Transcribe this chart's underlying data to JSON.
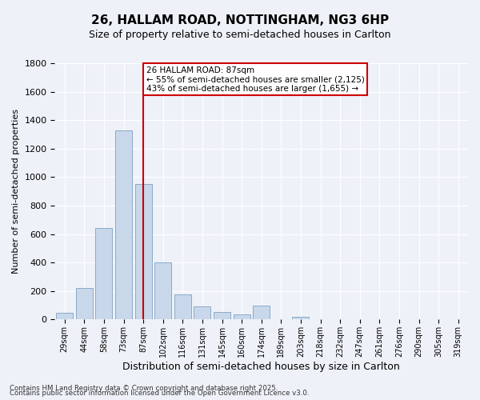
{
  "title1": "26, HALLAM ROAD, NOTTINGHAM, NG3 6HP",
  "title2": "Size of property relative to semi-detached houses in Carlton",
  "xlabel": "Distribution of semi-detached houses by size in Carlton",
  "ylabel": "Number of semi-detached properties",
  "annotation_line1": "26 HALLAM ROAD: 87sqm",
  "annotation_line2": "← 55% of semi-detached houses are smaller (2,125)",
  "annotation_line3": "43% of semi-detached houses are larger (1,655) →",
  "categories": [
    "29sqm",
    "44sqm",
    "58sqm",
    "73sqm",
    "87sqm",
    "102sqm",
    "116sqm",
    "131sqm",
    "145sqm",
    "160sqm",
    "174sqm",
    "189sqm",
    "203sqm",
    "218sqm",
    "232sqm",
    "247sqm",
    "261sqm",
    "276sqm",
    "290sqm",
    "305sqm",
    "319sqm"
  ],
  "values": [
    50,
    220,
    640,
    1330,
    950,
    400,
    175,
    90,
    55,
    35,
    100,
    5,
    20,
    5,
    0,
    0,
    0,
    0,
    0,
    0,
    0
  ],
  "bar_color": "#c8d8ea",
  "bar_edge_color": "#8aaac8",
  "vline_color": "#cc0000",
  "vline_index": 4,
  "annotation_box_facecolor": "#ffffff",
  "annotation_box_edgecolor": "#cc0000",
  "background_color": "#eef2f8",
  "grid_color": "#ffffff",
  "ylim": [
    0,
    1800
  ],
  "yticks": [
    0,
    200,
    400,
    600,
    800,
    1000,
    1200,
    1400,
    1600,
    1800
  ],
  "title1_fontsize": 11,
  "title2_fontsize": 9,
  "xlabel_fontsize": 9,
  "ylabel_fontsize": 8,
  "tick_fontsize": 8,
  "xtick_fontsize": 7,
  "footnote1": "Contains HM Land Registry data © Crown copyright and database right 2025.",
  "footnote2": "Contains public sector information licensed under the Open Government Licence v3.0."
}
